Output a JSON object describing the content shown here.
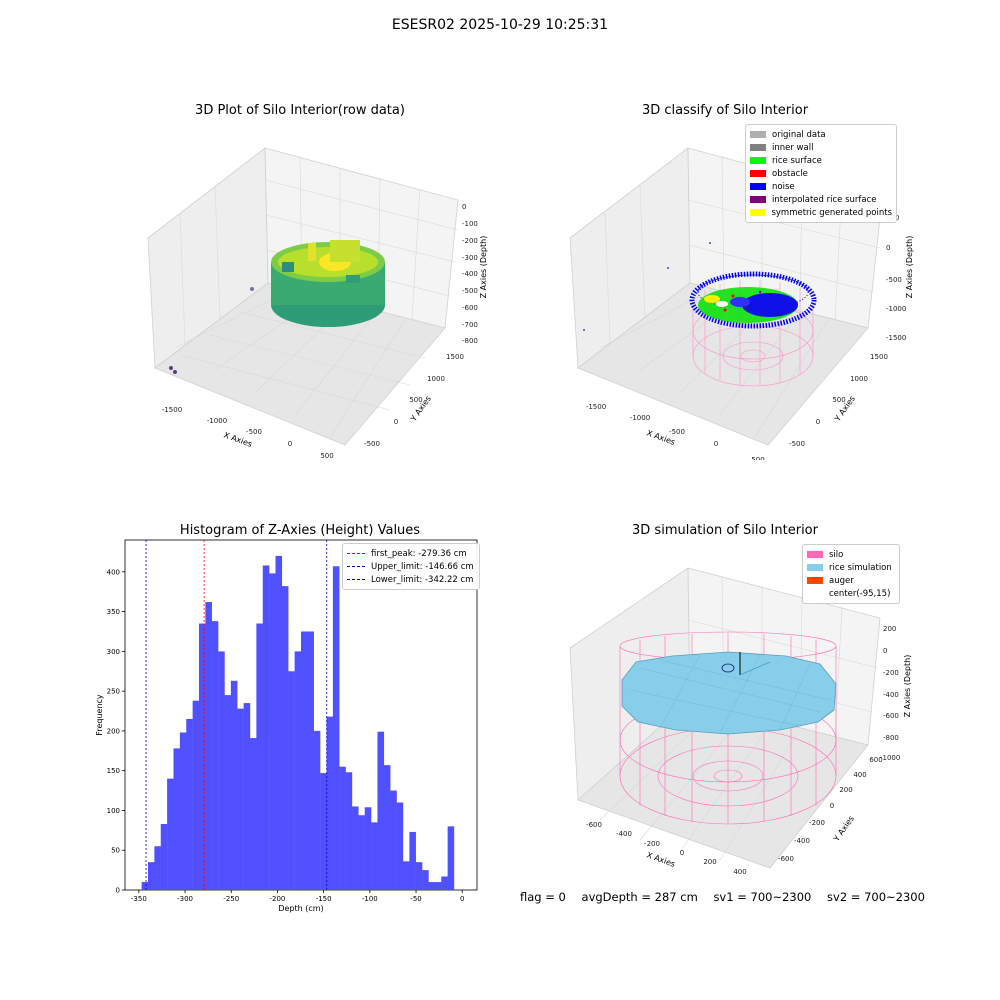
{
  "suptitle": "ESESR02 2025-10-29 10:25:31",
  "panel1": {
    "title": "3D Plot of Silo Interior(row data)",
    "xlabel": "X Axies",
    "ylabel": "Y Axies",
    "zlabel": "Z Axies (Depth)",
    "xticks": [
      "-1500",
      "-1000",
      "-500",
      "0",
      "500"
    ],
    "yticks": [
      "-500",
      "0",
      "500",
      "1000",
      "1500"
    ],
    "zticks": [
      "0",
      "-100",
      "-200",
      "-300",
      "-400",
      "-500",
      "-600",
      "-700",
      "-800"
    ]
  },
  "panel2": {
    "title": "3D classify of Silo Interior",
    "xlabel": "X Axies",
    "ylabel": "Y Axies",
    "zlabel": "Z Axies (Depth)",
    "xticks": [
      "-1500",
      "-1000",
      "-500",
      "0",
      "500"
    ],
    "yticks": [
      "-500",
      "0",
      "500",
      "1000",
      "1500"
    ],
    "zticks": [
      "500",
      "0",
      "-500",
      "-1000",
      "-1500"
    ],
    "legend": [
      {
        "label": "original data",
        "color": "#b0b0b0"
      },
      {
        "label": "inner wall",
        "color": "#808080"
      },
      {
        "label": "rice surface",
        "color": "#00ff00"
      },
      {
        "label": "obstacle",
        "color": "#ff0000"
      },
      {
        "label": "noise",
        "color": "#0000ff"
      },
      {
        "label": "interpolated rice surface",
        "color": "#800080"
      },
      {
        "label": "symmetric generated points",
        "color": "#ffff00"
      }
    ]
  },
  "panel4": {
    "title": "3D simulation of Silo Interior",
    "xlabel": "X Axies",
    "ylabel": "Y Axies",
    "zlabel": "Z Axies (Depth)",
    "xticks": [
      "-600",
      "-400",
      "-200",
      "0",
      "200",
      "400"
    ],
    "yticks": [
      "-600",
      "-400",
      "-200",
      "0",
      "200",
      "400",
      "600"
    ],
    "zticks": [
      "200",
      "0",
      "-200",
      "-400",
      "-600",
      "-800",
      "-1000"
    ],
    "legend": [
      {
        "label": "silo",
        "color": "#ff69b4"
      },
      {
        "label": "rice simulation",
        "color": "#87ceeb"
      },
      {
        "label": "auger",
        "color": "#ff4500"
      },
      {
        "label": "center(-95,15)",
        "color": ""
      }
    ]
  },
  "status": {
    "flag": "flag = 0",
    "avg": "avgDepth = 287 cm",
    "sv1": "sv1 = 700~2300",
    "sv2": "sv2 = 700~2300"
  },
  "chart_data": {
    "type": "bar",
    "title": "Histogram of Z-Axies (Height) Values",
    "xlabel": "Depth (cm)",
    "ylabel": "Frequency",
    "xlim": [
      -365,
      16
    ],
    "ylim": [
      0,
      440
    ],
    "bin_start": -347,
    "bin_width": 6.9,
    "values": [
      10,
      35,
      55,
      83,
      140,
      178,
      198,
      215,
      238,
      335,
      362,
      338,
      300,
      245,
      263,
      228,
      235,
      191,
      335,
      408,
      398,
      420,
      382,
      275,
      300,
      325,
      325,
      200,
      147,
      218,
      407,
      155,
      148,
      105,
      94,
      104,
      85,
      199,
      157,
      125,
      110,
      36,
      73,
      35,
      25,
      10,
      10,
      17,
      80
    ],
    "bar_color": "#5050ff",
    "xticks": [
      -350,
      -300,
      -250,
      -200,
      -150,
      -100,
      -50,
      0
    ],
    "yticks": [
      0,
      50,
      100,
      150,
      200,
      250,
      300,
      350,
      400
    ],
    "tick_labels_x": [
      "-350",
      "-300",
      "-250",
      "-200",
      "-150",
      "-100",
      "-50",
      "0"
    ],
    "tick_labels_y": [
      "0",
      "50",
      "100",
      "150",
      "200",
      "250",
      "300",
      "350",
      "400"
    ],
    "vlines": [
      {
        "x": -279.36,
        "color": "#ff0000",
        "label": "first_peak: -279.36 cm"
      },
      {
        "x": -146.66,
        "color": "#0000cc",
        "label": "Upper_limit: -146.66 cm"
      },
      {
        "x": -342.22,
        "color": "#0000cc",
        "label": "Lower_limit: -342.22 cm"
      }
    ],
    "legend_position": "top-right"
  }
}
